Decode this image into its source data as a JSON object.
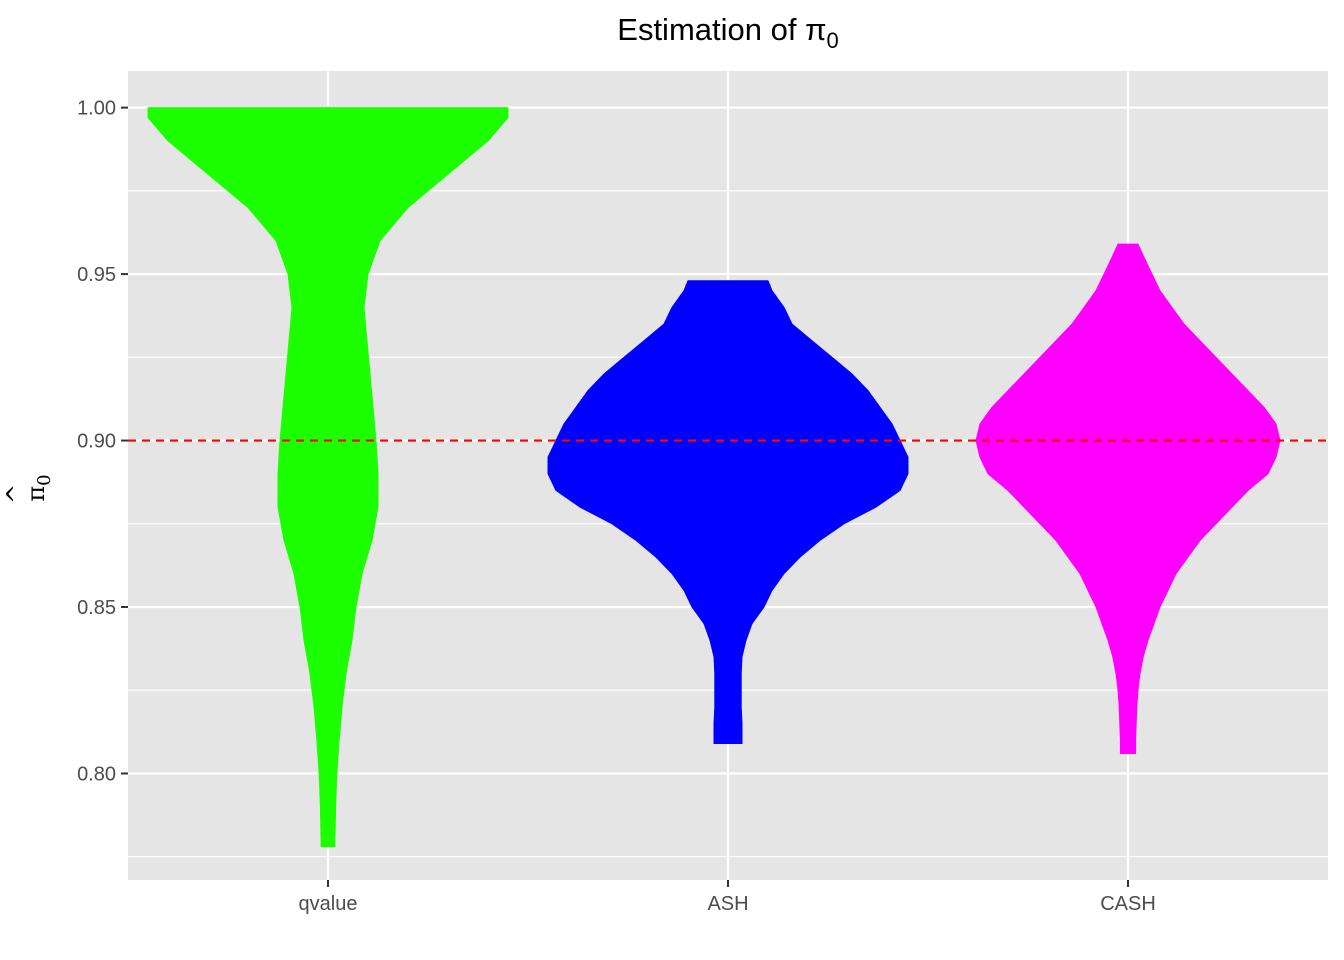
{
  "chart_data": {
    "type": "violin",
    "title": "Estimation of π",
    "title_subscript": "0",
    "xlabel": "",
    "ylabel": "π",
    "ylabel_hat": "^",
    "ylabel_subscript": "0",
    "ylim": [
      0.768,
      1.011
    ],
    "y_ticks": [
      0.8,
      0.85,
      0.9,
      0.95,
      1.0
    ],
    "y_tick_labels": [
      "0.80",
      "0.85",
      "0.90",
      "0.95",
      "1.00"
    ],
    "y_minor_ticks": [
      0.775,
      0.825,
      0.875,
      0.925,
      0.975
    ],
    "categories": [
      "qvalue",
      "ASH",
      "CASH"
    ],
    "grid": true,
    "background": "#e5e5e5",
    "grid_color": "#ffffff",
    "reference_line": {
      "y": 0.9,
      "color": "#ff0000",
      "style": "dashed"
    },
    "series": [
      {
        "category": "qvalue",
        "color": "#1cff00",
        "density": [
          [
            1.0,
            0.45
          ],
          [
            0.997,
            0.45
          ],
          [
            0.99,
            0.4
          ],
          [
            0.98,
            0.3
          ],
          [
            0.97,
            0.2
          ],
          [
            0.96,
            0.13
          ],
          [
            0.95,
            0.1
          ],
          [
            0.94,
            0.09
          ],
          [
            0.92,
            0.105
          ],
          [
            0.9,
            0.12
          ],
          [
            0.89,
            0.125
          ],
          [
            0.88,
            0.125
          ],
          [
            0.87,
            0.11
          ],
          [
            0.86,
            0.085
          ],
          [
            0.85,
            0.07
          ],
          [
            0.84,
            0.06
          ],
          [
            0.83,
            0.045
          ],
          [
            0.82,
            0.035
          ],
          [
            0.81,
            0.028
          ],
          [
            0.8,
            0.022
          ],
          [
            0.79,
            0.019
          ],
          [
            0.778,
            0.017
          ]
        ]
      },
      {
        "category": "ASH",
        "color": "#0000ff",
        "density": [
          [
            0.948,
            0.1
          ],
          [
            0.945,
            0.11
          ],
          [
            0.94,
            0.14
          ],
          [
            0.935,
            0.16
          ],
          [
            0.93,
            0.21
          ],
          [
            0.925,
            0.26
          ],
          [
            0.92,
            0.31
          ],
          [
            0.915,
            0.35
          ],
          [
            0.91,
            0.38
          ],
          [
            0.905,
            0.41
          ],
          [
            0.9,
            0.43
          ],
          [
            0.895,
            0.45
          ],
          [
            0.89,
            0.45
          ],
          [
            0.885,
            0.43
          ],
          [
            0.88,
            0.37
          ],
          [
            0.875,
            0.29
          ],
          [
            0.87,
            0.23
          ],
          [
            0.865,
            0.18
          ],
          [
            0.86,
            0.14
          ],
          [
            0.855,
            0.11
          ],
          [
            0.85,
            0.09
          ],
          [
            0.845,
            0.06
          ],
          [
            0.84,
            0.045
          ],
          [
            0.835,
            0.035
          ],
          [
            0.83,
            0.033
          ],
          [
            0.82,
            0.033
          ],
          [
            0.815,
            0.035
          ],
          [
            0.809,
            0.035
          ]
        ]
      },
      {
        "category": "CASH",
        "color": "#ff00ff",
        "density": [
          [
            0.959,
            0.025
          ],
          [
            0.955,
            0.04
          ],
          [
            0.95,
            0.06
          ],
          [
            0.945,
            0.08
          ],
          [
            0.94,
            0.11
          ],
          [
            0.935,
            0.14
          ],
          [
            0.93,
            0.18
          ],
          [
            0.925,
            0.22
          ],
          [
            0.92,
            0.26
          ],
          [
            0.915,
            0.3
          ],
          [
            0.91,
            0.34
          ],
          [
            0.905,
            0.37
          ],
          [
            0.9,
            0.38
          ],
          [
            0.895,
            0.37
          ],
          [
            0.89,
            0.35
          ],
          [
            0.885,
            0.3
          ],
          [
            0.88,
            0.26
          ],
          [
            0.875,
            0.22
          ],
          [
            0.87,
            0.18
          ],
          [
            0.865,
            0.15
          ],
          [
            0.86,
            0.12
          ],
          [
            0.855,
            0.1
          ],
          [
            0.85,
            0.08
          ],
          [
            0.845,
            0.065
          ],
          [
            0.84,
            0.05
          ],
          [
            0.835,
            0.038
          ],
          [
            0.83,
            0.03
          ],
          [
            0.825,
            0.025
          ],
          [
            0.82,
            0.022
          ],
          [
            0.81,
            0.019
          ],
          [
            0.806,
            0.019
          ]
        ]
      }
    ]
  }
}
